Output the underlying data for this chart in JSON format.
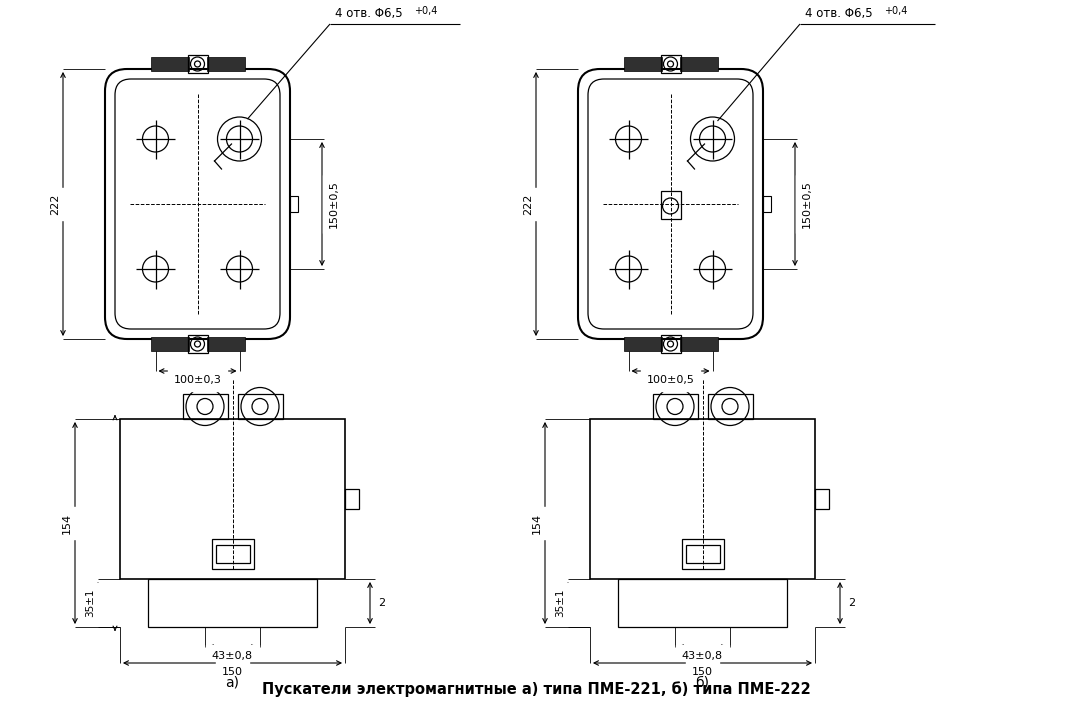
{
  "title": "Пускатели электромагнитные а) типа ПМЕ-221, б) типа ПМЕ-222",
  "label_a": "а)",
  "label_b": "б)",
  "dim_top_holes_a": "4 отв. Φ6,5",
  "dim_top_holes_b": "4 отв. Φ6,5",
  "dim_top_holes_tol": "+0,4",
  "dim_222": "222",
  "dim_150_05": "150±0,5",
  "dim_100_03": "100±0,3",
  "dim_100_05": "100±0,5",
  "dim_154": "154",
  "dim_35_1": "35±1",
  "dim_43_08": "43±0,8",
  "dim_150": "150",
  "dim_2": "2",
  "bg_color": "#ffffff",
  "lc": "#000000"
}
